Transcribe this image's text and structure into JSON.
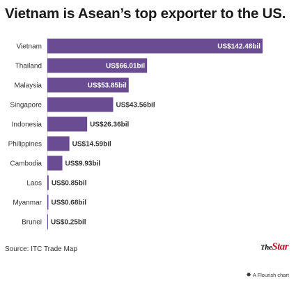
{
  "title": "Vietnam is Asean’s top exporter to the US.",
  "source": "Source: ITC Trade Map",
  "brand": {
    "the": "The",
    "star": "Star"
  },
  "flourish": {
    "icon": "flourish-icon",
    "label": "A Flourish chart"
  },
  "colors": {
    "bar": "#6a4c93",
    "inside_text": "#ffffff",
    "outside_text": "#333333",
    "baseline": "#cccccc"
  },
  "chart_data": {
    "type": "bar",
    "orientation": "horizontal",
    "title": "Vietnam is Asean’s top exporter to the US.",
    "xlabel": "",
    "ylabel": "",
    "grid": false,
    "xlim": [
      0,
      142.48
    ],
    "categories": [
      "Vietnam",
      "Thailand",
      "Malaysia",
      "Singapore",
      "Indonesia",
      "Philippines",
      "Cambodia",
      "Laos",
      "Myanmar",
      "Brunei"
    ],
    "values": [
      142.48,
      66.01,
      53.85,
      43.56,
      26.36,
      14.59,
      9.93,
      0.85,
      0.68,
      0.25
    ],
    "value_labels": [
      "US$142.48bil",
      "US$66.01bil",
      "US$53.85bil",
      "US$43.56bil",
      "US$26.36bil",
      "US$14.59bil",
      "US$9.93bil",
      "US$0.85bil",
      "US$0.68bil",
      "US$0.25bil"
    ]
  }
}
